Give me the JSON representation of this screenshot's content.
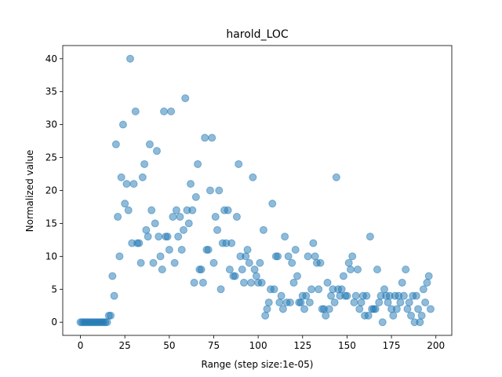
{
  "chart_data": {
    "type": "scatter",
    "title": "harold_LOC",
    "x_label": "Range (step size:1e-05)",
    "y_label": "Normalized value",
    "x": [
      0,
      1,
      2,
      3,
      4,
      5,
      6,
      7,
      8,
      9,
      10,
      11,
      12,
      13,
      14,
      15,
      16,
      17,
      18,
      19,
      20,
      21,
      22,
      23,
      24,
      25,
      26,
      27,
      28,
      29,
      30,
      31,
      32,
      33,
      34,
      35,
      36,
      37,
      38,
      39,
      40,
      41,
      42,
      43,
      44,
      45,
      46,
      47,
      48,
      49,
      50,
      51,
      52,
      53,
      54,
      55,
      56,
      57,
      58,
      59,
      60,
      61,
      62,
      63,
      64,
      65,
      66,
      67,
      68,
      69,
      70,
      71,
      72,
      73,
      74,
      75,
      76,
      77,
      78,
      79,
      80,
      81,
      82,
      83,
      84,
      85,
      86,
      87,
      88,
      89,
      90,
      91,
      92,
      93,
      94,
      95,
      96,
      97,
      98,
      99,
      100,
      101,
      102,
      103,
      104,
      105,
      106,
      107,
      108,
      109,
      110,
      111,
      112,
      113,
      114,
      115,
      116,
      117,
      118,
      119,
      120,
      121,
      122,
      123,
      124,
      125,
      126,
      127,
      128,
      129,
      130,
      131,
      132,
      133,
      134,
      135,
      136,
      137,
      138,
      139,
      140,
      141,
      142,
      143,
      144,
      145,
      146,
      147,
      148,
      149,
      150,
      151,
      152,
      153,
      154,
      155,
      156,
      157,
      158,
      159,
      160,
      161,
      162,
      163,
      164,
      165,
      166,
      167,
      168,
      169,
      170,
      171,
      172,
      173,
      174,
      175,
      176,
      177,
      178,
      179,
      180,
      181,
      182,
      183,
      184,
      185,
      186,
      187,
      188,
      189,
      190,
      191,
      192,
      193,
      194,
      195,
      196,
      197
    ],
    "values": [
      0,
      0,
      0,
      0,
      0,
      0,
      0,
      0,
      0,
      0,
      0,
      0,
      0,
      0,
      0,
      0,
      1,
      1,
      7,
      4,
      27,
      16,
      10,
      22,
      30,
      18,
      21,
      17,
      40,
      12,
      21,
      32,
      12,
      12,
      9,
      22,
      24,
      14,
      13,
      27,
      17,
      9,
      15,
      26,
      13,
      10,
      8,
      32,
      13,
      13,
      11,
      32,
      16,
      9,
      17,
      13,
      16,
      11,
      14,
      34,
      17,
      15,
      21,
      17,
      6,
      19,
      24,
      8,
      8,
      6,
      28,
      11,
      11,
      20,
      28,
      9,
      16,
      14,
      20,
      5,
      12,
      17,
      12,
      17,
      8,
      12,
      7,
      7,
      16,
      24,
      10,
      8,
      6,
      10,
      11,
      9,
      6,
      22,
      8,
      7,
      6,
      9,
      6,
      14,
      1,
      2,
      3,
      5,
      18,
      5,
      10,
      10,
      3,
      4,
      2,
      13,
      3,
      10,
      3,
      9,
      6,
      11,
      7,
      3,
      3,
      4,
      2,
      4,
      10,
      3,
      5,
      12,
      10,
      9,
      5,
      9,
      2,
      2,
      1,
      6,
      2,
      4,
      5,
      3,
      22,
      5,
      4,
      5,
      7,
      4,
      4,
      9,
      8,
      10,
      3,
      4,
      8,
      2,
      3,
      4,
      1,
      4,
      1,
      13,
      2,
      2,
      2,
      8,
      3,
      4,
      0,
      5,
      4,
      3,
      4,
      2,
      1,
      4,
      2,
      4,
      3,
      6,
      4,
      8,
      2,
      3,
      1,
      4,
      0,
      4,
      2,
      0,
      1,
      5,
      3,
      6,
      7,
      2
    ],
    "color": "#1f77b4",
    "xlim": [
      -9.95,
      208.95
    ],
    "ylim": [
      -2,
      42
    ],
    "xticks": [
      0,
      25,
      50,
      75,
      100,
      125,
      150,
      175,
      200
    ],
    "yticks": [
      0,
      5,
      10,
      15,
      20,
      25,
      30,
      35,
      40
    ]
  }
}
